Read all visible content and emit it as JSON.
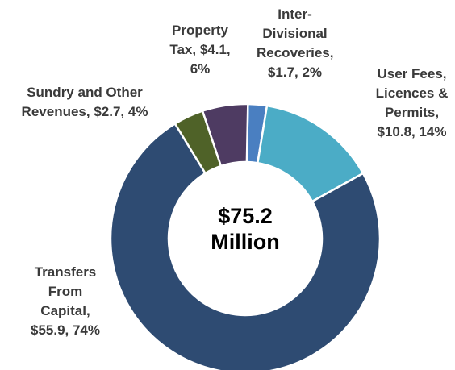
{
  "chart_data": {
    "type": "donut",
    "center_label": "$75.2 Million",
    "categories": [
      "Inter-Divisional Recoveries,",
      "User Fees, Licences & Permits,",
      "Transfers From Capital,",
      "Sundry and Other Revenues,",
      "Property Tax,"
    ],
    "values": [
      1.7,
      10.8,
      55.9,
      2.7,
      4.1
    ],
    "value_labels": [
      "$1.7, 2%",
      "$10.8, 14%",
      "$55.9, 74%",
      "$2.7, 4%",
      "$4.1, 6%"
    ],
    "colors": [
      "#4a7fc1",
      "#4bacc6",
      "#2e4b72",
      "#4f6228",
      "#4e3b62"
    ]
  }
}
